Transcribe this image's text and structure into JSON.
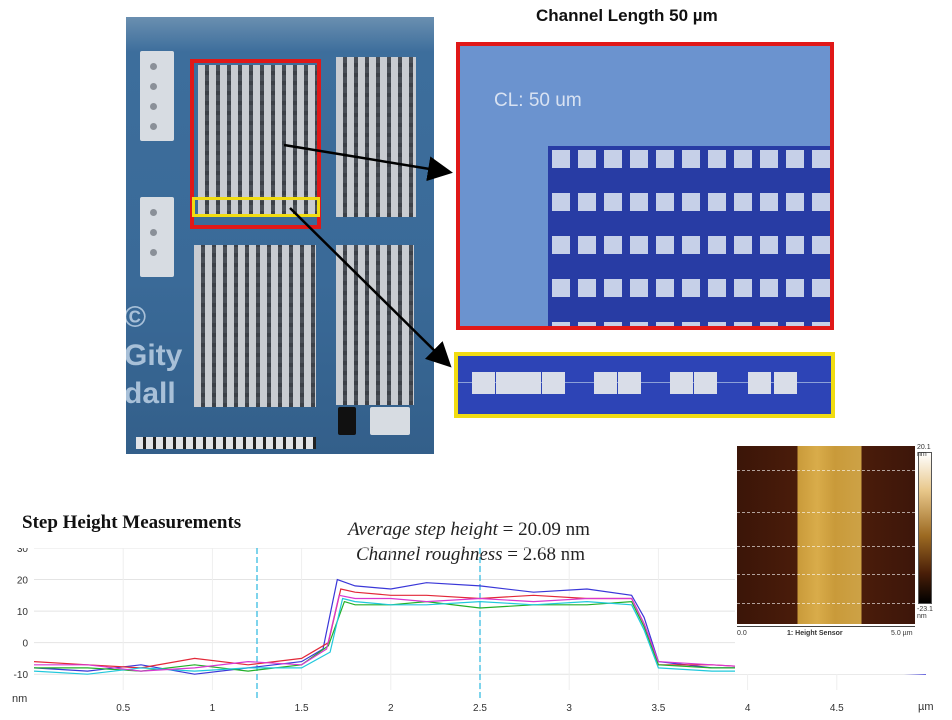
{
  "top_title": "Channel Length 50 µm",
  "zoom_label": "CL: 50 um",
  "chip_text": "©\nGity\ndall",
  "step_title": "Step Height Measurements",
  "stats": {
    "avg_label": "Average step height",
    "avg_value": " = 20.09 nm",
    "rough_label": "Channel roughness",
    "rough_value": " = 2.68 nm"
  },
  "afm": {
    "top_scale": "20.1 nm",
    "bottom_scale": "-23.1 nm",
    "x_start": "0.0",
    "x_end": "5.0 µm",
    "caption": "1: Height Sensor"
  },
  "colors": {
    "frame_red": "#e01818",
    "frame_yellow": "#f1dc12"
  },
  "chart_data": {
    "type": "line",
    "title": "Step Height Measurements",
    "xlabel": "µm",
    "ylabel": "nm",
    "xlim": [
      0,
      5.0
    ],
    "ylim": [
      -15,
      30
    ],
    "yticks": [
      30,
      20,
      10,
      0,
      -10
    ],
    "xticks": [
      0.5,
      1,
      1.5,
      2,
      2.5,
      3,
      3.5,
      4,
      4.5
    ],
    "series": [
      {
        "color": "#3a37d8",
        "x": [
          0,
          0.3,
          0.6,
          0.9,
          1.2,
          1.5,
          1.62,
          1.7,
          1.8,
          2.0,
          2.2,
          2.5,
          2.8,
          3.1,
          3.35,
          3.42,
          3.5,
          3.8,
          4.1,
          4.5,
          5.0
        ],
        "y": [
          -8,
          -9,
          -7,
          -10,
          -8,
          -6,
          -2,
          20,
          18,
          17,
          19,
          18,
          16,
          17,
          15,
          8,
          -6,
          -8,
          -8,
          -9,
          -10
        ]
      },
      {
        "color": "#e22838",
        "x": [
          0,
          0.3,
          0.6,
          0.9,
          1.2,
          1.5,
          1.65,
          1.72,
          1.8,
          2.0,
          2.2,
          2.5,
          2.8,
          3.1,
          3.35,
          3.42,
          3.5,
          3.8,
          4.1,
          4.5,
          5.0
        ],
        "y": [
          -6,
          -7,
          -8,
          -5,
          -7,
          -5,
          0,
          17,
          16,
          15,
          15,
          14,
          15,
          14,
          14,
          6,
          -7,
          -7,
          -8,
          -8,
          -8
        ]
      },
      {
        "color": "#22b028",
        "x": [
          0,
          0.3,
          0.6,
          0.9,
          1.2,
          1.5,
          1.65,
          1.74,
          1.8,
          2.0,
          2.2,
          2.5,
          2.8,
          3.1,
          3.35,
          3.42,
          3.5,
          3.8,
          4.1,
          4.5,
          5.0
        ],
        "y": [
          -8,
          -8,
          -9,
          -7,
          -9,
          -7,
          -1,
          13,
          12,
          12,
          13,
          11,
          12,
          12,
          13,
          5,
          -7,
          -8,
          -8,
          -7,
          -9
        ]
      },
      {
        "color": "#20c8dc",
        "x": [
          0,
          0.3,
          0.6,
          0.9,
          1.2,
          1.5,
          1.66,
          1.73,
          1.8,
          2.0,
          2.2,
          2.5,
          2.8,
          3.1,
          3.35,
          3.42,
          3.5,
          3.8,
          4.1,
          4.5,
          5.0
        ],
        "y": [
          -9,
          -10,
          -8,
          -9,
          -8,
          -8,
          -3,
          14,
          13,
          12,
          12,
          13,
          12,
          13,
          12,
          4,
          -8,
          -9,
          -9,
          -8,
          -9
        ]
      },
      {
        "color": "#d838d0",
        "x": [
          0,
          0.3,
          0.6,
          0.9,
          1.2,
          1.5,
          1.64,
          1.71,
          1.8,
          2.0,
          2.2,
          2.5,
          2.8,
          3.1,
          3.35,
          3.42,
          3.5,
          3.8,
          4.1,
          4.5,
          5.0
        ],
        "y": [
          -7,
          -7,
          -9,
          -8,
          -6,
          -7,
          -2,
          15,
          14,
          14,
          13,
          14,
          13,
          14,
          14,
          6,
          -6,
          -7,
          -8,
          -8,
          -8
        ]
      }
    ]
  }
}
